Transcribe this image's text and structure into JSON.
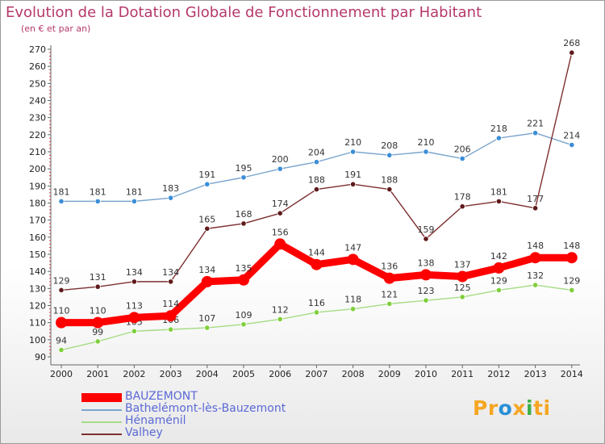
{
  "header": {
    "title": "Evolution de la Dotation Globale de Fonctionnement par Habitant",
    "subtitle": "(en € et par an)"
  },
  "logo": {
    "text": "Proxiti",
    "parts": [
      "Pr",
      "o",
      "x",
      "i",
      "ti"
    ],
    "colors": [
      "#f5a623",
      "#2a8fd8",
      "#f5a623",
      "#3fae49",
      "#f5a623"
    ]
  },
  "legend": {
    "items": [
      {
        "label": "BAUZEMONT",
        "color": "#ff0000",
        "thick": true
      },
      {
        "label": "Bathelémont-lès-Bauzemont",
        "color": "#7ba5cd",
        "thick": false
      },
      {
        "label": "Hénaménil",
        "color": "#a6dc84",
        "thick": false
      },
      {
        "label": "Valhey",
        "color": "#7d2f2f",
        "thick": false
      }
    ]
  },
  "chart_data": {
    "type": "line",
    "title": "Evolution de la Dotation Globale de Fonctionnement par Habitant",
    "subtitle": "(en € et par an)",
    "xlabel": "",
    "ylabel": "",
    "categories": [
      "2000",
      "2001",
      "2002",
      "2003",
      "2004",
      "2005",
      "2006",
      "2007",
      "2008",
      "2009",
      "2010",
      "2011",
      "2012",
      "2013",
      "2014"
    ],
    "yticks": [
      "90",
      "100",
      "110",
      "120",
      "130",
      "140",
      "150",
      "160",
      "170",
      "180",
      "190",
      "200",
      "210",
      "220",
      "230",
      "240",
      "250",
      "260",
      "270"
    ],
    "ylim": [
      90,
      270
    ],
    "grid": false,
    "series": [
      {
        "name": "Hénaménil",
        "color": "#a6dc84",
        "marker": "#7fcf3a",
        "values": [
          94,
          99,
          105,
          106,
          107,
          109,
          112,
          116,
          118,
          121,
          123,
          125,
          129,
          132,
          129
        ],
        "labels": [
          "94",
          "99",
          "105",
          "106",
          "107",
          "109",
          "112",
          "116",
          "118",
          "121",
          "123",
          "125",
          "129",
          "132",
          "129"
        ]
      },
      {
        "name": "Bathelémont-lès-Bauzemont",
        "color": "#7ba5cd",
        "marker": "#3b8ed6",
        "values": [
          181,
          181,
          181,
          183,
          191,
          195,
          200,
          204,
          210,
          208,
          210,
          206,
          218,
          221,
          214
        ],
        "labels": [
          "181",
          "181",
          "181",
          "183",
          "191",
          "195",
          "200",
          "204",
          "210",
          "208",
          "210",
          "206",
          "218",
          "221",
          "214"
        ]
      },
      {
        "name": "Valhey",
        "color": "#7d2f2f",
        "marker": "#5e1a1a",
        "values": [
          129,
          131,
          134,
          134,
          165,
          168,
          174,
          188,
          191,
          188,
          159,
          178,
          181,
          177,
          268
        ],
        "labels": [
          "129",
          "131",
          "134",
          "134",
          "165",
          "168",
          "174",
          "188",
          "191",
          "188",
          "159",
          "178",
          "181",
          "177",
          "268"
        ]
      },
      {
        "name": "BAUZEMONT",
        "color": "#ff0000",
        "marker": "#ff0000",
        "values": [
          110,
          110,
          113,
          114,
          134,
          135,
          156,
          144,
          147,
          136,
          138,
          137,
          142,
          148,
          148
        ],
        "labels": [
          "110",
          "110",
          "113",
          "114",
          "134",
          "135",
          "156",
          "144",
          "147",
          "136",
          "138",
          "137",
          "142",
          "148",
          "148"
        ]
      }
    ]
  }
}
